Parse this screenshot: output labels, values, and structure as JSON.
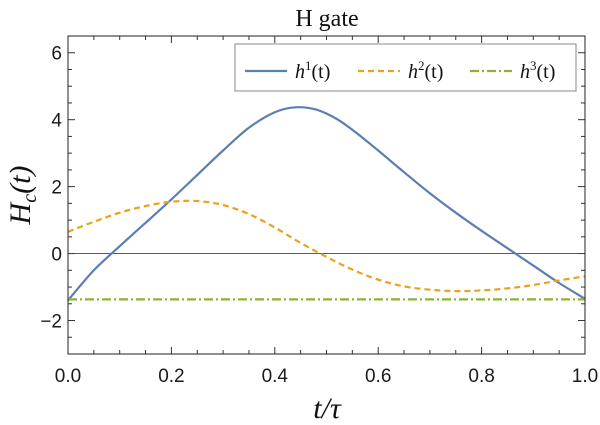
{
  "chart_data": {
    "type": "line",
    "title": "H gate",
    "xlabel": "t/τ",
    "ylabel": "H_c(t)",
    "xlim": [
      0,
      1
    ],
    "ylim": [
      -3,
      6.5
    ],
    "xticks": [
      0.0,
      0.2,
      0.4,
      0.6,
      0.8,
      1.0
    ],
    "xtick_labels": [
      "0.0",
      "0.2",
      "0.4",
      "0.6",
      "0.8",
      "1.0"
    ],
    "yticks": [
      -2,
      0,
      2,
      4,
      6
    ],
    "ytick_labels": [
      "−2",
      "0",
      "2",
      "4",
      "6"
    ],
    "legend_position": "top-right",
    "zero_line": true,
    "series": [
      {
        "name": "h1",
        "label_base": "h",
        "label_sup": "1",
        "label_suffix": "(t)",
        "color": "#5b7fb4",
        "style": "solid",
        "x": [
          0.0,
          0.05,
          0.1,
          0.15,
          0.2,
          0.25,
          0.3,
          0.35,
          0.4,
          0.44,
          0.48,
          0.52,
          0.56,
          0.6,
          0.65,
          0.7,
          0.75,
          0.8,
          0.85,
          0.9,
          0.95,
          1.0
        ],
        "y": [
          -1.4,
          -0.5,
          0.22,
          0.92,
          1.62,
          2.35,
          3.08,
          3.76,
          4.22,
          4.37,
          4.3,
          4.02,
          3.58,
          3.08,
          2.43,
          1.8,
          1.22,
          0.68,
          0.16,
          -0.36,
          -0.88,
          -1.35
        ]
      },
      {
        "name": "h2",
        "label_base": "h",
        "label_sup": "2",
        "label_suffix": "(t)",
        "color": "#e8a21f",
        "style": "dashed",
        "x": [
          0.0,
          0.05,
          0.1,
          0.15,
          0.2,
          0.25,
          0.3,
          0.35,
          0.4,
          0.45,
          0.5,
          0.55,
          0.6,
          0.65,
          0.7,
          0.75,
          0.8,
          0.85,
          0.9,
          0.95,
          1.0
        ],
        "y": [
          0.65,
          0.95,
          1.22,
          1.42,
          1.55,
          1.57,
          1.45,
          1.18,
          0.78,
          0.32,
          -0.1,
          -0.48,
          -0.78,
          -0.98,
          -1.08,
          -1.12,
          -1.1,
          -1.04,
          -0.94,
          -0.8,
          -0.68
        ]
      },
      {
        "name": "h3",
        "label_base": "h",
        "label_sup": "3",
        "label_suffix": "(t)",
        "color": "#8fb032",
        "style": "dashdot",
        "x": [
          0.0,
          1.0
        ],
        "y": [
          -1.37,
          -1.37
        ]
      }
    ]
  }
}
